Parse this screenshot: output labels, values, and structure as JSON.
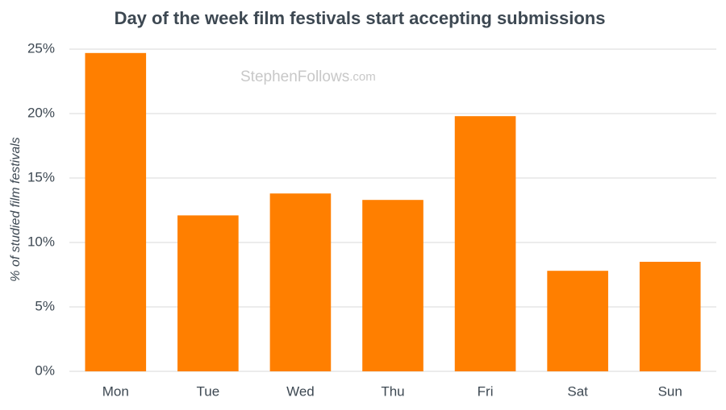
{
  "chart_data": {
    "type": "bar",
    "title": "Day of the week film festivals start accepting submissions",
    "y_label": "% of studied film festivals",
    "watermark": "StephenFollows",
    "watermark_suffix": ".com",
    "categories": [
      "Mon",
      "Tue",
      "Wed",
      "Thu",
      "Fri",
      "Sat",
      "Sun"
    ],
    "values": [
      24.7,
      12.1,
      13.8,
      13.3,
      19.8,
      7.8,
      8.5
    ],
    "color": "#ff7f00",
    "ylim": [
      0,
      25
    ],
    "yticks": [
      {
        "value": 0,
        "label": "0%"
      },
      {
        "value": 5,
        "label": "5%"
      },
      {
        "value": 10,
        "label": "10%"
      },
      {
        "value": 15,
        "label": "15%"
      },
      {
        "value": 20,
        "label": "20%"
      },
      {
        "value": 25,
        "label": "25%"
      }
    ],
    "grid": true
  }
}
